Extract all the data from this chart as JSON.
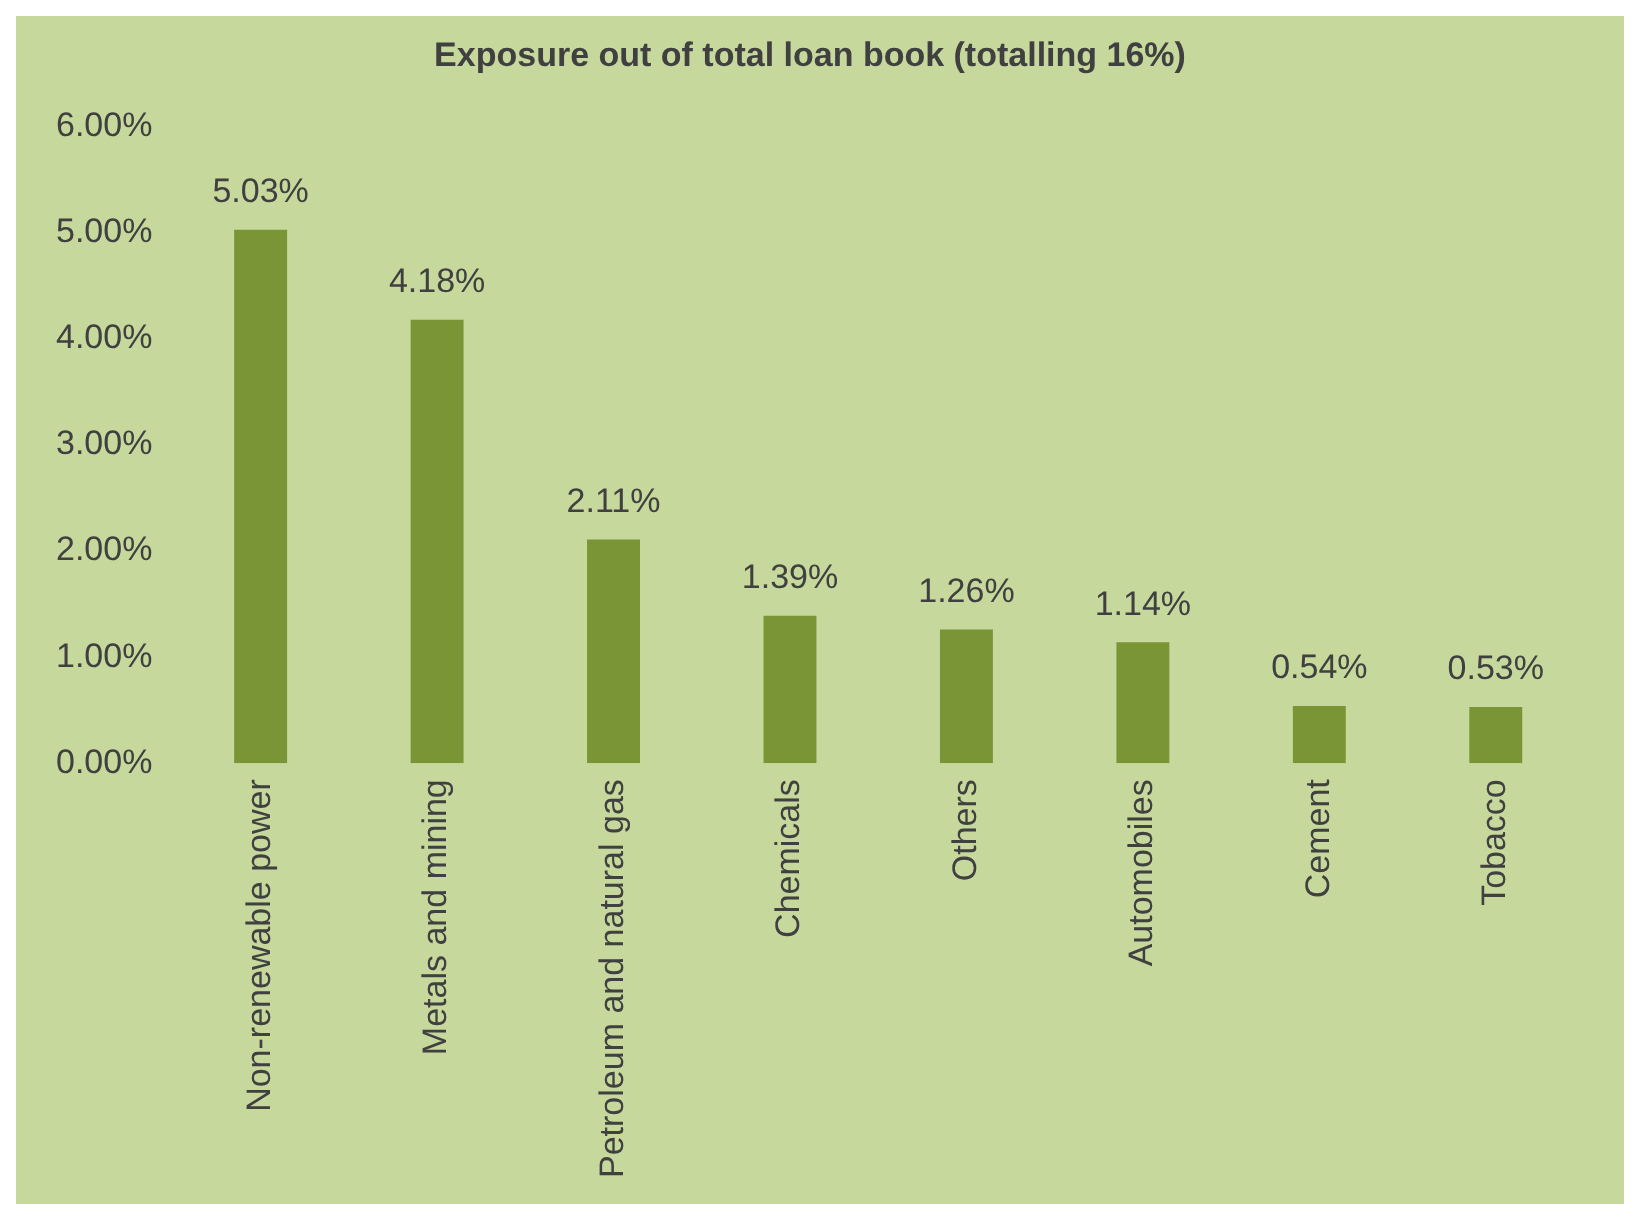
{
  "chart_data": {
    "type": "bar",
    "title": "Exposure out of total loan book (totalling 16%)",
    "categories": [
      "Non-renewable power",
      "Metals and mining",
      "Petroleum and natural gas",
      "Chemicals",
      "Others",
      "Automobiles",
      "Cement",
      "Tobacco"
    ],
    "values": [
      5.03,
      4.18,
      2.11,
      1.39,
      1.26,
      1.14,
      0.54,
      0.53
    ],
    "value_labels": [
      "5.03%",
      "4.18%",
      "2.11%",
      "1.39%",
      "1.26%",
      "1.14%",
      "0.54%",
      "0.53%"
    ],
    "color": "#7a9535",
    "ylim": [
      0,
      6
    ],
    "yticks": [
      {
        "value": 0,
        "label": "0.00%"
      },
      {
        "value": 1,
        "label": "1.00%"
      },
      {
        "value": 2,
        "label": "2.00%"
      },
      {
        "value": 3,
        "label": "3.00%"
      },
      {
        "value": 4,
        "label": "4.00%"
      },
      {
        "value": 5,
        "label": "5.00%"
      },
      {
        "value": 6,
        "label": "6.00%"
      }
    ],
    "grid": false,
    "legend": false
  }
}
